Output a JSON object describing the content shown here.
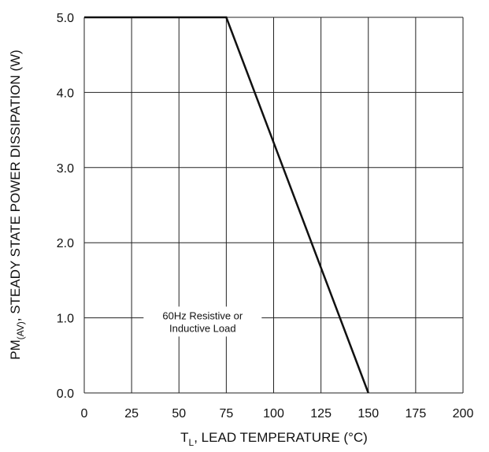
{
  "chart_data": {
    "type": "line",
    "xlabel": {
      "main": "T",
      "sub": "L",
      "rest": ", LEAD TEMPERATURE (°C)"
    },
    "ylabel": {
      "main": "PM",
      "sub": "(AV)",
      "rest": ", STEADY STATE POWER DISSIPATION (W)"
    },
    "xlim": [
      0,
      200
    ],
    "ylim": [
      0,
      5
    ],
    "xticks": [
      "0",
      "25",
      "50",
      "75",
      "100",
      "125",
      "150",
      "175",
      "200"
    ],
    "yticks": [
      "0.0",
      "1.0",
      "2.0",
      "3.0",
      "4.0",
      "5.0"
    ],
    "grid": true,
    "series": [
      {
        "x": [
          0,
          75,
          150
        ],
        "y": [
          5.0,
          5.0,
          0.0
        ]
      }
    ],
    "annotation": {
      "line1": "60Hz Resistive or",
      "line2": "Inductive Load",
      "x": 62.5,
      "y": 0.95
    }
  }
}
